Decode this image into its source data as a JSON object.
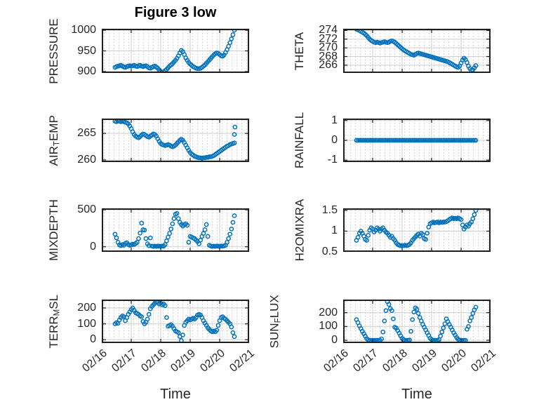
{
  "figure": {
    "title": "Figure 3 low",
    "x_axis_label": "Time",
    "marker_color": "#0072BD",
    "axis_color": "#1f1f1f",
    "major_grid_color": "#cfcfcf",
    "minor_grid_color": "#c2c2c2",
    "text_color": "#262626",
    "xtick_labels": [
      "02/16",
      "02/17",
      "02/18",
      "02/19",
      "02/20",
      "02/21"
    ],
    "x_days": [
      0.45,
      0.5,
      0.55,
      0.6,
      0.65,
      0.7,
      0.75,
      0.8,
      0.85,
      0.9,
      0.95,
      1.0,
      1.05,
      1.1,
      1.15,
      1.2,
      1.25,
      1.3,
      1.35,
      1.4,
      1.45,
      1.5,
      1.55,
      1.6,
      1.65,
      1.7,
      1.75,
      1.8,
      1.85,
      1.9,
      1.95,
      2.0,
      2.05,
      2.1,
      2.15,
      2.2,
      2.25,
      2.3,
      2.35,
      2.4,
      2.45,
      2.5,
      2.55,
      2.6,
      2.65,
      2.7,
      2.75,
      2.8,
      2.85,
      2.9,
      2.95,
      3.0,
      3.05,
      3.1,
      3.15,
      3.2,
      3.25,
      3.3,
      3.35,
      3.4,
      3.45,
      3.5,
      3.55,
      3.6,
      3.65,
      3.7,
      3.75,
      3.8,
      3.85,
      3.9,
      3.95,
      4.0,
      4.05,
      4.1,
      4.15,
      4.2,
      4.25,
      4.3,
      4.35,
      4.4,
      4.45,
      4.5
    ]
  },
  "chart_data": [
    {
      "id": "pressure",
      "type": "scatter",
      "ylabel": "PRESSURE",
      "ylabel_parts": [
        {
          "t": "PRESSURE"
        }
      ],
      "xlim": [
        0,
        5
      ],
      "ylim": [
        896.5,
        1003.5
      ],
      "xticks": [
        0,
        1,
        2,
        3,
        4,
        5
      ],
      "yticks": [
        900,
        950,
        1000
      ],
      "ytick_labels": [
        "900",
        "950",
        "1000"
      ],
      "show_xtick_labels": false,
      "y": [
        910,
        912,
        913,
        914,
        915,
        913,
        911,
        910,
        912,
        913,
        914,
        913,
        914,
        915,
        913,
        912,
        914,
        915,
        913,
        912,
        913,
        914,
        912,
        909,
        908,
        910,
        912,
        913,
        911,
        908,
        904,
        900,
        898,
        899,
        902,
        905,
        909,
        913,
        916,
        919,
        923,
        927,
        932,
        938,
        945,
        951,
        948,
        941,
        933,
        927,
        922,
        918,
        915,
        912,
        910,
        908,
        907,
        907,
        908,
        910,
        913,
        916,
        920,
        924,
        928,
        932,
        936,
        940,
        943,
        945,
        944,
        941,
        938,
        937,
        940,
        946,
        953,
        961,
        970,
        979,
        989,
        1000
      ]
    },
    {
      "id": "theta",
      "type": "scatter",
      "ylabel": "THETA",
      "ylabel_parts": [
        {
          "t": "THETA"
        }
      ],
      "xlim": [
        0,
        5
      ],
      "ylim": [
        264.2,
        274.4
      ],
      "xticks": [
        0,
        1,
        2,
        3,
        4,
        5
      ],
      "yticks": [
        266,
        268,
        270,
        272,
        274
      ],
      "ytick_labels": [
        "266",
        "268",
        "270",
        "272",
        "274"
      ],
      "show_xtick_labels": false,
      "y": [
        274.3,
        274.2,
        274.0,
        273.8,
        273.6,
        273.4,
        273.1,
        272.8,
        272.4,
        272.0,
        271.7,
        271.5,
        271.3,
        271.2,
        271.3,
        271.2,
        271.1,
        271.2,
        271.3,
        271.4,
        271.3,
        271.2,
        271.3,
        271.5,
        271.6,
        271.5,
        271.3,
        271.0,
        270.7,
        270.4,
        270.1,
        269.8,
        269.5,
        269.3,
        269.1,
        268.9,
        268.7,
        268.5,
        268.4,
        268.3,
        268.5,
        268.7,
        268.8,
        268.7,
        268.6,
        268.5,
        268.4,
        268.3,
        268.2,
        268.1,
        268.0,
        267.9,
        267.8,
        267.7,
        267.6,
        267.5,
        267.4,
        267.3,
        267.2,
        267.1,
        267.0,
        266.9,
        266.8,
        266.6,
        266.4,
        266.2,
        266.0,
        265.8,
        265.6,
        265.5,
        265.8,
        266.5,
        267.2,
        267.6,
        267.3,
        266.6,
        265.8,
        265.2,
        264.8,
        264.9,
        265.4,
        265.9
      ]
    },
    {
      "id": "air_temp",
      "type": "scatter",
      "ylabel": "AIR_TEMP",
      "ylabel_parts": [
        {
          "t": "AIR"
        },
        {
          "t": "T",
          "sub": true
        },
        {
          "t": "EMP"
        }
      ],
      "xlim": [
        0,
        5
      ],
      "ylim": [
        259.6,
        267.8
      ],
      "xticks": [
        0,
        1,
        2,
        3,
        4,
        5
      ],
      "yticks": [
        260,
        265
      ],
      "ytick_labels": [
        "260",
        "265"
      ],
      "show_xtick_labels": false,
      "extra_points": [
        [
          4.5,
          264.8
        ],
        [
          4.52,
          266.2
        ]
      ],
      "y": [
        267.3,
        267.2,
        267.4,
        267.3,
        267.2,
        267.3,
        267.2,
        267.1,
        267.0,
        266.8,
        266.4,
        265.9,
        265.3,
        264.8,
        264.5,
        264.3,
        264.2,
        264.4,
        264.7,
        264.9,
        264.8,
        264.6,
        264.4,
        264.3,
        264.5,
        264.7,
        264.9,
        264.8,
        264.5,
        264.0,
        263.5,
        263.1,
        262.9,
        262.8,
        262.7,
        262.8,
        262.9,
        262.8,
        262.6,
        262.5,
        262.6,
        262.8,
        263.1,
        263.4,
        263.7,
        263.9,
        263.7,
        263.3,
        262.8,
        262.3,
        261.8,
        261.4,
        261.1,
        260.9,
        260.7,
        260.6,
        260.5,
        260.4,
        260.4,
        260.3,
        260.4,
        260.4,
        260.5,
        260.5,
        260.6,
        260.6,
        260.7,
        260.8,
        261.0,
        261.2,
        261.4,
        261.6,
        261.8,
        262.0,
        262.2,
        262.4,
        262.6,
        262.7,
        262.9,
        263.0,
        263.1,
        263.2
      ]
    },
    {
      "id": "rainfall",
      "type": "scatter",
      "ylabel": "RAINFALL",
      "ylabel_parts": [
        {
          "t": "RAINFALL"
        }
      ],
      "xlim": [
        0,
        5
      ],
      "ylim": [
        -1.1,
        1.1
      ],
      "xticks": [
        0,
        1,
        2,
        3,
        4,
        5
      ],
      "yticks": [
        -1,
        0,
        1
      ],
      "ytick_labels": [
        "-1",
        "0",
        "1"
      ],
      "show_xtick_labels": false,
      "y": [
        0,
        0,
        0,
        0,
        0,
        0,
        0,
        0,
        0,
        0,
        0,
        0,
        0,
        0,
        0,
        0,
        0,
        0,
        0,
        0,
        0,
        0,
        0,
        0,
        0,
        0,
        0,
        0,
        0,
        0,
        0,
        0,
        0,
        0,
        0,
        0,
        0,
        0,
        0,
        0,
        0,
        0,
        0,
        0,
        0,
        0,
        0,
        0,
        0,
        0,
        0,
        0,
        0,
        0,
        0,
        0,
        0,
        0,
        0,
        0,
        0,
        0,
        0,
        0,
        0,
        0,
        0,
        0,
        0,
        0,
        0,
        0,
        0,
        0,
        0,
        0,
        0,
        0,
        0,
        0,
        0,
        0
      ]
    },
    {
      "id": "mixdepth",
      "type": "scatter",
      "ylabel": "MIXDEPTH",
      "ylabel_parts": [
        {
          "t": "MIXDEPTH"
        }
      ],
      "xlim": [
        0,
        5
      ],
      "ylim": [
        -69,
        519
      ],
      "xticks": [
        0,
        1,
        2,
        3,
        4,
        5
      ],
      "yticks": [
        0,
        500
      ],
      "ytick_labels": [
        "0",
        "500"
      ],
      "show_xtick_labels": false,
      "y": [
        170,
        120,
        60,
        25,
        15,
        30,
        20,
        45,
        55,
        30,
        20,
        25,
        35,
        30,
        45,
        60,
        110,
        185,
        320,
        230,
        225,
        110,
        40,
        15,
        120,
        10,
        5,
        8,
        5,
        10,
        8,
        5,
        10,
        8,
        30,
        80,
        130,
        180,
        240,
        310,
        380,
        440,
        450,
        380,
        330,
        300,
        280,
        300,
        310,
        290,
        60,
        140,
        130,
        120,
        110,
        90,
        70,
        40,
        90,
        140,
        180,
        230,
        300,
        140,
        20,
        10,
        5,
        8,
        5,
        10,
        8,
        5,
        10,
        8,
        12,
        20,
        60,
        110,
        170,
        240,
        330,
        420
      ]
    },
    {
      "id": "h2omixra",
      "type": "scatter",
      "ylabel": "H2OMIXRA",
      "ylabel_parts": [
        {
          "t": "H2OMIXRA"
        }
      ],
      "xlim": [
        0,
        5
      ],
      "ylim": [
        0.5,
        1.55
      ],
      "xticks": [
        0,
        1,
        2,
        3,
        4,
        5
      ],
      "yticks": [
        0.5,
        1,
        1.5
      ],
      "ytick_labels": [
        "0.5",
        "1",
        "1.5"
      ],
      "show_xtick_labels": false,
      "y": [
        0.78,
        0.85,
        0.95,
        1.0,
        0.95,
        0.88,
        0.8,
        0.78,
        0.9,
        1.02,
        1.08,
        1.05,
        0.98,
        1.02,
        1.08,
        1.05,
        1.0,
        1.05,
        1.08,
        1.02,
        0.98,
        0.95,
        0.9,
        0.85,
        0.88,
        0.82,
        0.78,
        0.72,
        0.68,
        0.66,
        0.65,
        0.65,
        0.65,
        0.66,
        0.65,
        0.66,
        0.68,
        0.72,
        0.78,
        0.82,
        0.86,
        0.9,
        0.93,
        0.88,
        0.95,
        0.92,
        0.82,
        0.8,
        0.95,
        1.1,
        1.18,
        1.2,
        1.22,
        1.2,
        1.21,
        1.22,
        1.2,
        1.22,
        1.21,
        1.22,
        1.22,
        1.23,
        1.25,
        1.28,
        1.3,
        1.32,
        1.3,
        1.31,
        1.3,
        1.32,
        1.3,
        1.28,
        1.15,
        1.05,
        1.1,
        1.15,
        1.12,
        1.18,
        1.22,
        1.3,
        1.4,
        1.5
      ]
    },
    {
      "id": "terr_msl",
      "type": "scatter",
      "ylabel": "TERR_MSL",
      "ylabel_parts": [
        {
          "t": "TERR"
        },
        {
          "t": "M",
          "sub": true
        },
        {
          "t": "SL"
        }
      ],
      "xlim": [
        0,
        5
      ],
      "ylim": [
        -21,
        253
      ],
      "xticks": [
        0,
        1,
        2,
        3,
        4,
        5
      ],
      "yticks": [
        0,
        100,
        200
      ],
      "ytick_labels": [
        "0",
        "100",
        "200"
      ],
      "show_xtick_labels": true,
      "y": [
        100,
        108,
        103,
        125,
        140,
        150,
        145,
        120,
        140,
        160,
        175,
        190,
        200,
        185,
        170,
        165,
        160,
        150,
        145,
        115,
        100,
        110,
        130,
        160,
        195,
        210,
        220,
        230,
        240,
        235,
        225,
        230,
        220,
        225,
        215,
        140,
        85,
        90,
        95,
        85,
        70,
        55,
        50,
        45,
        20,
        -5,
        30,
        90,
        110,
        120,
        130,
        125,
        130,
        135,
        130,
        140,
        155,
        160,
        155,
        140,
        120,
        105,
        90,
        75,
        65,
        55,
        50,
        55,
        50,
        60,
        90,
        120,
        140,
        145,
        135,
        130,
        120,
        110,
        100,
        80,
        45,
        20
      ]
    },
    {
      "id": "sun_flux",
      "type": "scatter",
      "ylabel": "SUN_FLUX",
      "ylabel_parts": [
        {
          "t": "SUN"
        },
        {
          "t": "F",
          "sub": true
        },
        {
          "t": "LUX"
        }
      ],
      "xlim": [
        0,
        5
      ],
      "ylim": [
        -20,
        295
      ],
      "xticks": [
        0,
        1,
        2,
        3,
        4,
        5
      ],
      "yticks": [
        0,
        100,
        200
      ],
      "ytick_labels": [
        "0",
        "100",
        "200"
      ],
      "show_xtick_labels": true,
      "y": [
        150,
        128,
        105,
        85,
        65,
        48,
        30,
        12,
        3,
        0,
        0,
        0,
        0,
        0,
        0,
        0,
        0,
        10,
        60,
        140,
        215,
        280,
        260,
        230,
        215,
        155,
        95,
        88,
        70,
        52,
        32,
        14,
        4,
        0,
        0,
        0,
        2,
        65,
        150,
        205,
        235,
        225,
        195,
        165,
        140,
        115,
        95,
        75,
        55,
        35,
        15,
        5,
        0,
        0,
        0,
        0,
        5,
        30,
        60,
        90,
        120,
        155,
        135,
        115,
        95,
        75,
        55,
        38,
        20,
        8,
        2,
        0,
        0,
        0,
        0,
        80,
        100,
        140,
        165,
        195,
        220,
        240
      ]
    }
  ]
}
